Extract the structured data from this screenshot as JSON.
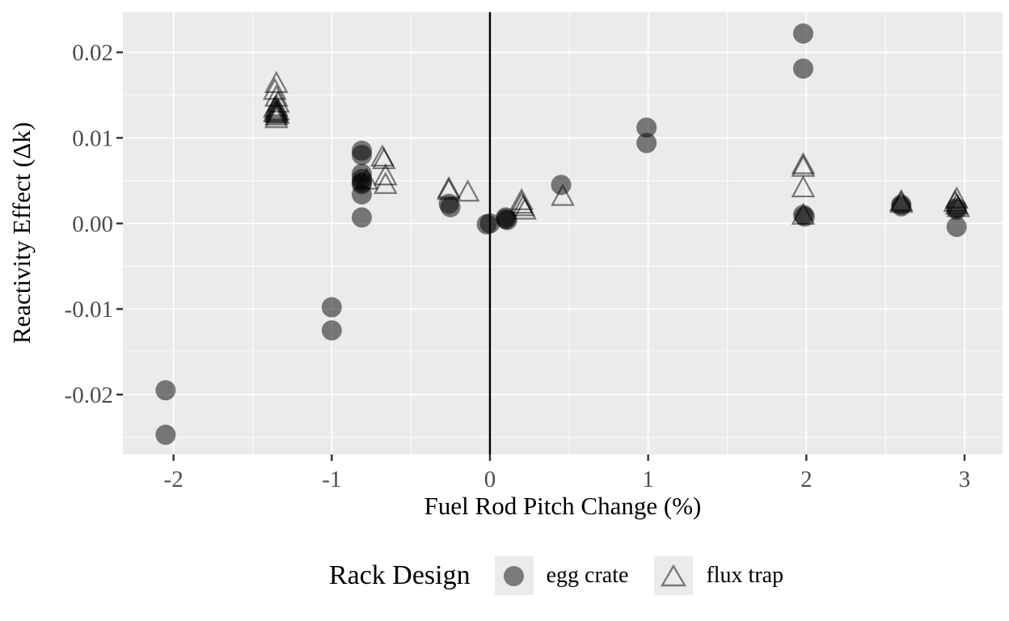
{
  "chart_data": {
    "type": "scatter",
    "title": "",
    "xlabel": "Fuel Rod Pitch Change (%)",
    "ylabel": "Reactivity Effect (Δk)",
    "xlim": [
      -2.32,
      3.24
    ],
    "ylim": [
      -0.027,
      0.0247
    ],
    "grid": "on",
    "panel_background": "#EBEBEB",
    "gridline_color": "#FFFFFF",
    "tick_label_color": "#4D4D4D",
    "tick_mark_color": "#333333",
    "x_ticks": {
      "values": [
        -2,
        -1,
        0,
        1,
        2,
        3
      ],
      "labels": [
        "-2",
        "-1",
        "0",
        "1",
        "2",
        "3"
      ],
      "minor": [
        -1.5,
        -0.5,
        0.5,
        1.5,
        2.5
      ]
    },
    "y_ticks": {
      "values": [
        0.02,
        0.01,
        0,
        -0.01,
        -0.02
      ],
      "labels": [
        "0.02",
        "0.01",
        "0.00",
        "-0.01",
        "-0.02"
      ],
      "minor": [
        0.015,
        0.005,
        -0.005,
        -0.015,
        -0.025
      ]
    },
    "reference_line": {
      "x": 0,
      "color": "#000000"
    },
    "legend": {
      "title": "Rack Design",
      "position": "bottom",
      "entries": [
        {
          "label": "egg crate",
          "marker": "filled-circle",
          "marker_color": "#7A7A7A"
        },
        {
          "label": "flux trap",
          "marker": "open-triangle",
          "marker_color": "#7A7A7A"
        }
      ]
    },
    "series": [
      {
        "name": "egg crate",
        "marker": "circle",
        "color": "#000000",
        "opacity": 0.5,
        "points": [
          [
            -2.05,
            -0.0195
          ],
          [
            -2.05,
            -0.0247
          ],
          [
            -1.0,
            -0.0098
          ],
          [
            -1.0,
            -0.0125
          ],
          [
            -0.81,
            0.0085
          ],
          [
            -0.81,
            0.008
          ],
          [
            -0.81,
            0.0058
          ],
          [
            -0.81,
            0.0052
          ],
          [
            -0.81,
            0.0048
          ],
          [
            -0.81,
            0.0046
          ],
          [
            -0.81,
            0.0034
          ],
          [
            -0.81,
            0.0007
          ],
          [
            -0.26,
            0.0023
          ],
          [
            -0.25,
            0.0019
          ],
          [
            -0.02,
            -0.0001
          ],
          [
            0.0,
            0.0
          ],
          [
            0.1,
            0.0007
          ],
          [
            0.1,
            0.0005
          ],
          [
            0.11,
            0.0004
          ],
          [
            0.45,
            0.0045
          ],
          [
            0.99,
            0.0112
          ],
          [
            0.99,
            0.0094
          ],
          [
            1.98,
            0.0222
          ],
          [
            1.98,
            0.0181
          ],
          [
            1.98,
            0.001
          ],
          [
            1.99,
            0.0008
          ],
          [
            2.6,
            0.0022
          ],
          [
            2.6,
            0.002
          ],
          [
            2.95,
            0.0018
          ],
          [
            2.95,
            0.0016
          ],
          [
            2.95,
            -0.0004
          ]
        ]
      },
      {
        "name": "flux trap",
        "marker": "triangle-open",
        "color": "#000000",
        "opacity": 0.5,
        "points": [
          [
            -1.35,
            0.0163
          ],
          [
            -1.36,
            0.0155
          ],
          [
            -1.35,
            0.0147
          ],
          [
            -1.34,
            0.014
          ],
          [
            -1.35,
            0.0136
          ],
          [
            -1.36,
            0.0134
          ],
          [
            -1.35,
            0.0132
          ],
          [
            -1.34,
            0.0131
          ],
          [
            -1.35,
            0.013
          ],
          [
            -1.36,
            0.0129
          ],
          [
            -1.35,
            0.0128
          ],
          [
            -1.34,
            0.0127
          ],
          [
            -1.35,
            0.0125
          ],
          [
            -1.35,
            0.0122
          ],
          [
            -0.78,
            0.005
          ],
          [
            -0.68,
            0.0077
          ],
          [
            -0.67,
            0.0074
          ],
          [
            -0.66,
            0.0055
          ],
          [
            -0.66,
            0.0045
          ],
          [
            -0.26,
            0.004
          ],
          [
            -0.26,
            0.0038
          ],
          [
            -0.14,
            0.0036
          ],
          [
            0.2,
            0.0026
          ],
          [
            0.2,
            0.0022
          ],
          [
            0.21,
            0.0019
          ],
          [
            0.22,
            0.0015
          ],
          [
            0.46,
            0.0031
          ],
          [
            1.98,
            0.0068
          ],
          [
            1.98,
            0.0065
          ],
          [
            1.98,
            0.0041
          ],
          [
            1.98,
            0.0009
          ],
          [
            2.6,
            0.0025
          ],
          [
            2.6,
            0.0023
          ],
          [
            2.95,
            0.0028
          ],
          [
            2.94,
            0.0024
          ],
          [
            2.95,
            0.0021
          ],
          [
            2.96,
            0.0018
          ]
        ]
      }
    ]
  }
}
